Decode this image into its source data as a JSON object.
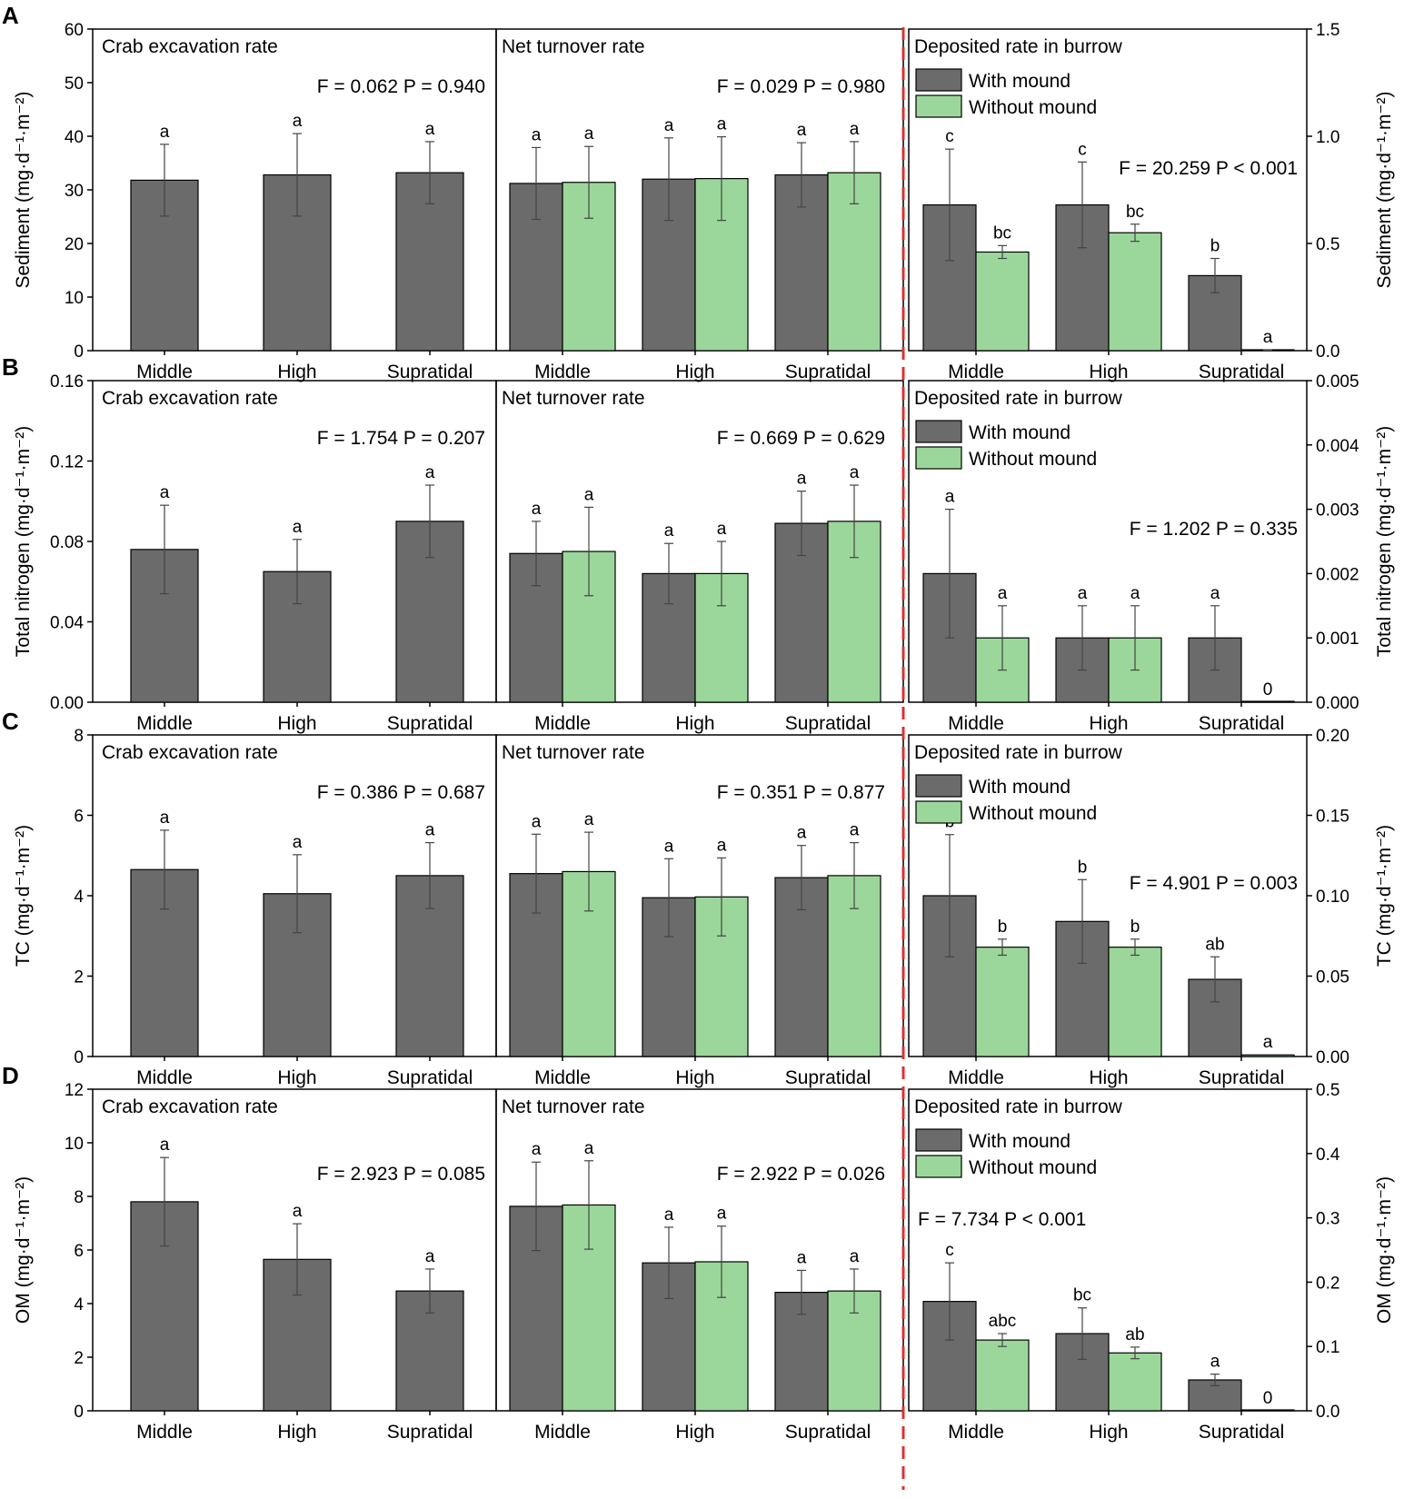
{
  "colors": {
    "with_mound": "#6b6b6b",
    "without_mound": "#9bd79b",
    "divider": "#e03030"
  },
  "categories": [
    "Middle",
    "High",
    "Supratidal"
  ],
  "section_titles": {
    "excavation": "Crab excavation rate",
    "turnover": "Net turnover rate",
    "deposited": "Deposited rate in burrow"
  },
  "legend": {
    "with": "With mound",
    "without": "Without mound"
  },
  "chart_data": [
    {
      "type": "bar",
      "panel": "A",
      "ylabel_left": "Sediment (mg·d⁻¹·m⁻²)",
      "ylabel_right": "Sediment (mg·d⁻¹·m⁻²)",
      "ylim_left": [
        0,
        60
      ],
      "yticks_left": [
        "0",
        "10",
        "20",
        "30",
        "40",
        "50",
        "60"
      ],
      "ylim_right": [
        0,
        1.5
      ],
      "yticks_right": [
        "0.0",
        "0.5",
        "1.0",
        "1.5"
      ],
      "categories": [
        "Middle",
        "High",
        "Supratidal"
      ],
      "excavation": {
        "stat": "F = 0.062   P = 0.940",
        "values": [
          31.8,
          32.8,
          33.2
        ],
        "errors": [
          6.7,
          7.7,
          5.8
        ],
        "sig": [
          "a",
          "a",
          "a"
        ]
      },
      "turnover": {
        "stat": "F = 0.029   P = 0.980",
        "series": [
          {
            "name": "With mound",
            "values": [
              31.2,
              32.0,
              32.8
            ],
            "errors": [
              6.7,
              7.7,
              6.0
            ],
            "sig": [
              "a",
              "a",
              "a"
            ]
          },
          {
            "name": "Without mound",
            "values": [
              31.4,
              32.1,
              33.2
            ],
            "errors": [
              6.7,
              7.8,
              5.8
            ],
            "sig": [
              "a",
              "a",
              "a"
            ]
          }
        ]
      },
      "deposited": {
        "stat": "F = 20.259   P < 0.001",
        "series": [
          {
            "name": "With mound",
            "values": [
              0.68,
              0.68,
              0.35
            ],
            "errors": [
              0.26,
              0.2,
              0.08
            ],
            "sig": [
              "c",
              "c",
              "b"
            ]
          },
          {
            "name": "Without mound",
            "values": [
              0.46,
              0.55,
              0.003
            ],
            "errors": [
              0.03,
              0.04,
              0.001
            ],
            "sig": [
              "bc",
              "bc",
              "a"
            ]
          }
        ]
      }
    },
    {
      "type": "bar",
      "panel": "B",
      "ylabel_left": "Total nitrogen (mg·d⁻¹·m⁻²)",
      "ylabel_right": "Total nitrogen (mg·d⁻¹·m⁻²)",
      "ylim_left": [
        0,
        0.16
      ],
      "yticks_left": [
        "0.00",
        "0.04",
        "0.08",
        "0.12",
        "0.16"
      ],
      "ylim_right": [
        0,
        0.005
      ],
      "yticks_right": [
        "0.000",
        "0.001",
        "0.002",
        "0.003",
        "0.004",
        "0.005"
      ],
      "categories": [
        "Middle",
        "High",
        "Supratidal"
      ],
      "excavation": {
        "stat": "F = 1.754   P = 0.207",
        "values": [
          0.076,
          0.065,
          0.09
        ],
        "errors": [
          0.022,
          0.016,
          0.018
        ],
        "sig": [
          "a",
          "a",
          "a"
        ]
      },
      "turnover": {
        "stat": "F = 0.669   P = 0.629",
        "series": [
          {
            "name": "With mound",
            "values": [
              0.074,
              0.064,
              0.089
            ],
            "errors": [
              0.016,
              0.015,
              0.016
            ],
            "sig": [
              "a",
              "a",
              "a"
            ]
          },
          {
            "name": "Without mound",
            "values": [
              0.075,
              0.064,
              0.09
            ],
            "errors": [
              0.022,
              0.016,
              0.018
            ],
            "sig": [
              "a",
              "a",
              "a"
            ]
          }
        ]
      },
      "deposited": {
        "stat": "F = 1.202   P = 0.335",
        "series": [
          {
            "name": "With mound",
            "values": [
              0.002,
              0.001,
              0.001
            ],
            "errors": [
              0.001,
              0.0005,
              0.0005
            ],
            "sig": [
              "a",
              "a",
              "a"
            ]
          },
          {
            "name": "Without mound",
            "values": [
              0.001,
              0.001,
              0.0
            ],
            "errors": [
              0.0005,
              0.0005,
              0.0
            ],
            "sig": [
              "a",
              "a",
              "0"
            ]
          }
        ]
      }
    },
    {
      "type": "bar",
      "panel": "C",
      "ylabel_left": "TC (mg·d⁻¹·m⁻²)",
      "ylabel_right": "TC (mg·d⁻¹·m⁻²)",
      "ylim_left": [
        0,
        8
      ],
      "yticks_left": [
        "0",
        "2",
        "4",
        "6",
        "8"
      ],
      "ylim_right": [
        0,
        0.2
      ],
      "yticks_right": [
        "0.00",
        "0.05",
        "0.10",
        "0.15",
        "0.20"
      ],
      "categories": [
        "Middle",
        "High",
        "Supratidal"
      ],
      "excavation": {
        "stat": "F = 0.386   P = 0.687",
        "values": [
          4.65,
          4.05,
          4.5
        ],
        "errors": [
          0.98,
          0.97,
          0.82
        ],
        "sig": [
          "a",
          "a",
          "a"
        ]
      },
      "turnover": {
        "stat": "F = 0.351   P = 0.877",
        "series": [
          {
            "name": "With mound",
            "values": [
              4.55,
              3.95,
              4.45
            ],
            "errors": [
              0.98,
              0.97,
              0.8
            ],
            "sig": [
              "a",
              "a",
              "a"
            ]
          },
          {
            "name": "Without mound",
            "values": [
              4.6,
              3.97,
              4.5
            ],
            "errors": [
              0.98,
              0.97,
              0.82
            ],
            "sig": [
              "a",
              "a",
              "a"
            ]
          }
        ]
      },
      "deposited": {
        "stat": "F = 4.901   P = 0.003",
        "series": [
          {
            "name": "With mound",
            "values": [
              0.1,
              0.084,
              0.048
            ],
            "errors": [
              0.038,
              0.026,
              0.014
            ],
            "sig": [
              "b",
              "b",
              "ab"
            ]
          },
          {
            "name": "Without mound",
            "values": [
              0.068,
              0.068,
              0.001
            ],
            "errors": [
              0.005,
              0.005,
              0.0
            ],
            "sig": [
              "b",
              "b",
              "a"
            ]
          }
        ]
      }
    },
    {
      "type": "bar",
      "panel": "D",
      "ylabel_left": "OM (mg·d⁻¹·m⁻²)",
      "ylabel_right": "OM (mg·d⁻¹·m⁻²)",
      "ylim_left": [
        0,
        12
      ],
      "yticks_left": [
        "0",
        "2",
        "4",
        "6",
        "8",
        "10",
        "12"
      ],
      "ylim_right": [
        0,
        0.5
      ],
      "yticks_right": [
        "0.0",
        "0.1",
        "0.2",
        "0.3",
        "0.4",
        "0.5"
      ],
      "categories": [
        "Middle",
        "High",
        "Supratidal"
      ],
      "excavation": {
        "stat": "F = 2.923   P = 0.085",
        "values": [
          7.8,
          5.65,
          4.47
        ],
        "errors": [
          1.65,
          1.33,
          0.82
        ],
        "sig": [
          "a",
          "a",
          "a"
        ]
      },
      "turnover": {
        "stat": "F = 2.922   P = 0.026",
        "series": [
          {
            "name": "With mound",
            "values": [
              7.63,
              5.52,
              4.42
            ],
            "errors": [
              1.65,
              1.33,
              0.82
            ],
            "sig": [
              "a",
              "a",
              "a"
            ]
          },
          {
            "name": "Without mound",
            "values": [
              7.68,
              5.56,
              4.47
            ],
            "errors": [
              1.65,
              1.33,
              0.82
            ],
            "sig": [
              "a",
              "a",
              "a"
            ]
          }
        ]
      },
      "deposited": {
        "stat": "F = 7.734   P < 0.001",
        "series": [
          {
            "name": "With mound",
            "values": [
              0.17,
              0.12,
              0.048
            ],
            "errors": [
              0.06,
              0.04,
              0.009
            ],
            "sig": [
              "c",
              "bc",
              "a"
            ]
          },
          {
            "name": "Without mound",
            "values": [
              0.11,
              0.09,
              0.0
            ],
            "errors": [
              0.01,
              0.009,
              0.0
            ],
            "sig": [
              "abc",
              "ab",
              "0"
            ]
          }
        ]
      }
    }
  ]
}
